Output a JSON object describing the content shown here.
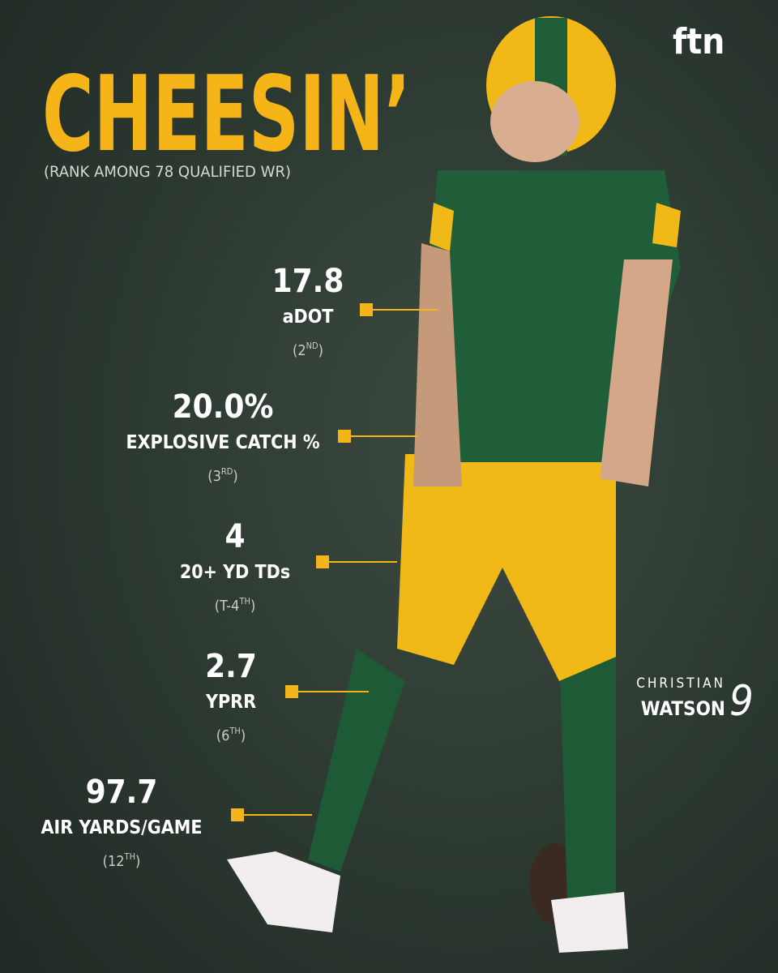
{
  "header": {
    "title": "CHEESIN’",
    "subtitle": "(RANK AMONG 78 QUALIFIED WR)"
  },
  "logo": "ftn",
  "stats": [
    {
      "value": "17.8",
      "label": "aDOT",
      "rank": {
        "main": "(2",
        "sup": "ND",
        "close": ")"
      }
    },
    {
      "value": "20.0%",
      "label": "EXPLOSIVE CATCH %",
      "rank": {
        "main": "(3",
        "sup": "RD",
        "close": ")"
      }
    },
    {
      "value": "4",
      "label": "20+ YD TDs",
      "rank": {
        "main": "(T-4",
        "sup": "TH",
        "close": ")"
      }
    },
    {
      "value": "2.7",
      "label": "YPRR",
      "rank": {
        "main": "(6",
        "sup": "TH",
        "close": ")"
      }
    },
    {
      "value": "97.7",
      "label": "AIR YARDS/GAME",
      "rank": {
        "main": "(12",
        "sup": "TH",
        "close": ")"
      }
    }
  ],
  "player": {
    "first": "CHRISTIAN",
    "last": "WATSON",
    "number": "9"
  }
}
